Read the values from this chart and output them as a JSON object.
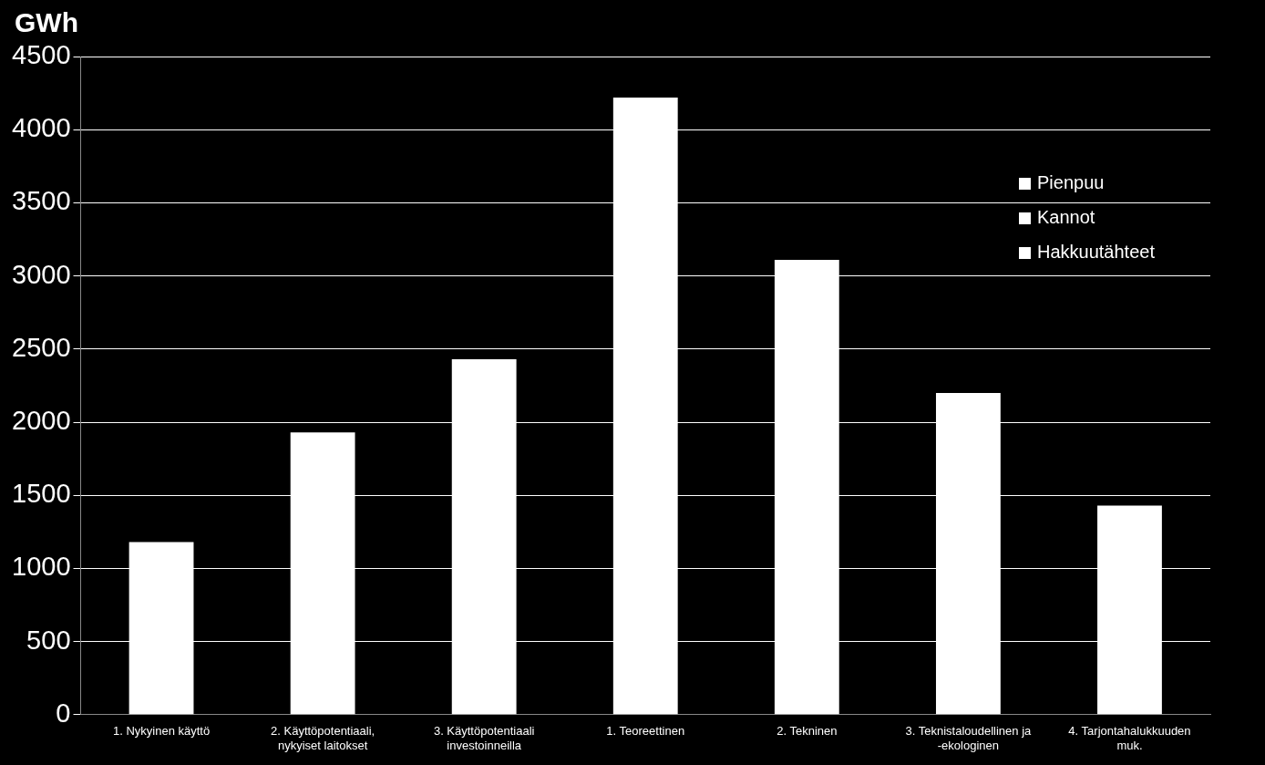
{
  "chart_data": {
    "type": "bar",
    "ylabel": "GWh",
    "stacked": true,
    "categories": [
      "1. Nykyinen käyttö",
      "2. Käyttöpotentiaali, nykyiset laitokset",
      "3. Käyttöpotentiaali investoinneilla",
      "1. Teoreettinen",
      "2. Tekninen",
      "3. Teknistaloudellinen ja -ekologinen",
      "4. Tarjontahalukkuuden muk."
    ],
    "series": [
      {
        "name": "Hakkuutähteet",
        "color": "#ffffff",
        "values": [
          1180,
          1930,
          2430,
          4220,
          3110,
          2200,
          1430
        ]
      },
      {
        "name": "Kannot",
        "color": "#ffffff",
        "values": [
          null,
          null,
          null,
          null,
          null,
          null,
          null
        ]
      },
      {
        "name": "Pienpuu",
        "color": "#ffffff",
        "values": [
          null,
          null,
          null,
          null,
          null,
          null,
          null
        ]
      }
    ],
    "ylim": [
      0,
      4500
    ],
    "yticks": [
      0,
      500,
      1000,
      1500,
      2000,
      2500,
      3000,
      3500,
      4000,
      4500
    ],
    "grid": "y",
    "legend": "right"
  }
}
